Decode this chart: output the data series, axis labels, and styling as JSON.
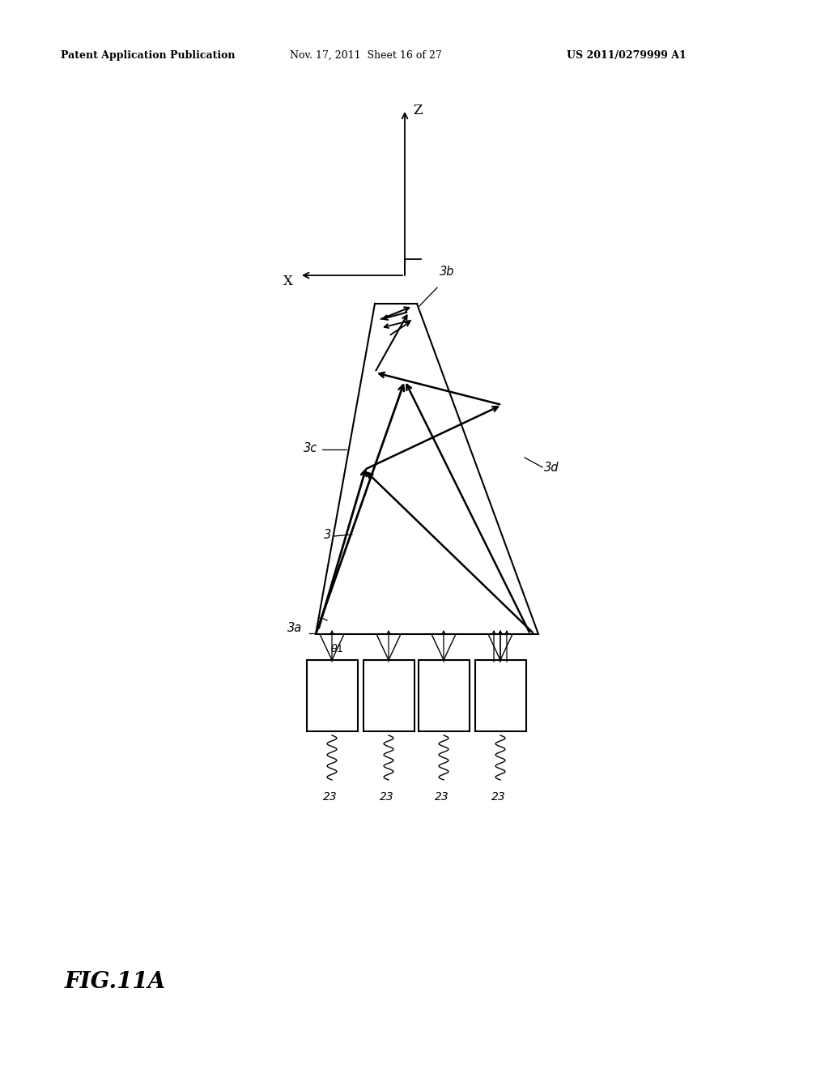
{
  "bg_color": "#ffffff",
  "text_color": "#000000",
  "header_left": "Patent Application Publication",
  "header_center": "Nov. 17, 2011  Sheet 16 of 27",
  "header_right": "US 2011/0279999 A1",
  "fig_label": "FIG.11A",
  "coord_z_label": "Z",
  "coord_x_label": "X",
  "label_3b": "3b",
  "label_3c": "3c",
  "label_3d": "3d",
  "label_3": "3",
  "label_3a": "3a",
  "label_23": "23"
}
